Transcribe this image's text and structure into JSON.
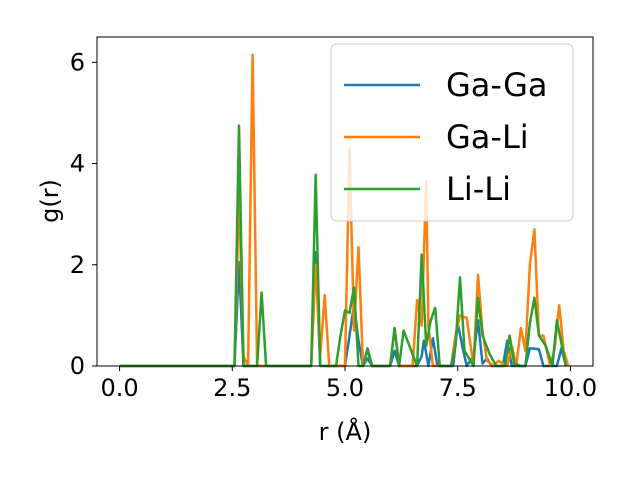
{
  "chart_data": {
    "type": "line",
    "title": "",
    "xlabel": "r (Å)",
    "ylabel": "g(r)",
    "xlim": [
      -0.5,
      10.5
    ],
    "ylim": [
      0,
      6.5
    ],
    "xticks": [
      0.0,
      2.5,
      5.0,
      7.5,
      10.0
    ],
    "xtick_labels": [
      "0.0",
      "2.5",
      "5.0",
      "7.5",
      "10.0"
    ],
    "yticks": [
      0,
      2,
      4,
      6
    ],
    "ytick_labels": [
      "0",
      "2",
      "4",
      "6"
    ],
    "grid": false,
    "legend_position": "top-right",
    "series": [
      {
        "name": "Ga-Ga",
        "color": "#1f77b4",
        "x": [
          0.0,
          2.5,
          2.55,
          2.65,
          2.75,
          2.85,
          4.2,
          4.25,
          4.35,
          4.45,
          4.55,
          5.0,
          5.1,
          5.2,
          5.3,
          5.4,
          5.5,
          5.6,
          6.0,
          6.1,
          6.2,
          6.6,
          6.7,
          6.75,
          6.85,
          6.95,
          7.05,
          7.4,
          7.5,
          7.6,
          7.7,
          7.85,
          7.95,
          8.05,
          8.15,
          8.25,
          8.5,
          8.6,
          8.7,
          8.85,
          9.0,
          9.1,
          9.3,
          9.4,
          9.7,
          9.8,
          9.9
        ],
        "y": [
          0,
          0,
          0,
          2.05,
          0,
          0,
          0,
          0,
          2.25,
          0,
          0,
          0,
          0.6,
          1.2,
          0.5,
          0.0,
          0.15,
          0,
          0,
          0.3,
          0,
          0,
          0.2,
          0.5,
          0,
          0.55,
          0,
          0,
          0.85,
          0.4,
          0,
          0.2,
          0.9,
          0.05,
          0.15,
          0,
          0,
          0.5,
          0,
          0,
          0,
          0.35,
          0.33,
          0,
          0,
          0.35,
          0
        ]
      },
      {
        "name": "Ga-Li",
        "color": "#ff7f0e",
        "x": [
          0.0,
          2.5,
          2.55,
          2.65,
          2.75,
          2.85,
          2.95,
          3.05,
          3.15,
          3.25,
          4.2,
          4.25,
          4.35,
          4.45,
          4.55,
          4.65,
          4.9,
          5.0,
          5.1,
          5.2,
          5.3,
          5.4,
          5.5,
          5.6,
          5.7,
          6.0,
          6.1,
          6.2,
          6.5,
          6.6,
          6.7,
          6.8,
          6.85,
          6.95,
          7.05,
          7.35,
          7.45,
          7.55,
          7.7,
          7.85,
          7.95,
          8.05,
          8.15,
          8.3,
          8.4,
          8.6,
          8.7,
          8.8,
          8.9,
          9.0,
          9.1,
          9.2,
          9.3,
          9.4,
          9.55,
          9.65,
          9.75,
          9.85,
          9.95
        ],
        "y": [
          0,
          0,
          0,
          3.4,
          0.2,
          0,
          6.15,
          0,
          0,
          0,
          0,
          0,
          2.0,
          0.2,
          1.4,
          0,
          0,
          0,
          4.3,
          0.7,
          2.35,
          0,
          0.3,
          0,
          0,
          0,
          0.75,
          0,
          0,
          1.3,
          0.8,
          3.65,
          0.8,
          0,
          0,
          0,
          0.6,
          1.0,
          0.95,
          0,
          1.8,
          0.7,
          0.1,
          0,
          0.1,
          0,
          0.4,
          0,
          0.75,
          0.3,
          2.0,
          2.7,
          0.6,
          0.6,
          0,
          0.35,
          1.2,
          0.3,
          0
        ]
      },
      {
        "name": "Li-Li",
        "color": "#2ca02c",
        "x": [
          0.0,
          2.5,
          2.55,
          2.65,
          2.75,
          2.85,
          2.95,
          3.05,
          3.15,
          3.25,
          4.2,
          4.25,
          4.35,
          4.45,
          4.55,
          4.8,
          4.9,
          5.0,
          5.1,
          5.2,
          5.3,
          5.4,
          5.5,
          5.6,
          6.0,
          6.1,
          6.2,
          6.3,
          6.6,
          6.7,
          6.8,
          6.9,
          7.0,
          7.1,
          7.35,
          7.45,
          7.55,
          7.65,
          7.85,
          7.95,
          8.05,
          8.2,
          8.35,
          8.45,
          8.55,
          8.65,
          8.75,
          8.9,
          9.0,
          9.1,
          9.2,
          9.3,
          9.45,
          9.6,
          9.7,
          9.8,
          9.9
        ],
        "y": [
          0,
          0,
          0,
          4.75,
          0,
          0,
          0,
          0,
          1.45,
          0,
          0,
          0,
          3.78,
          0,
          0,
          0,
          0.6,
          1.1,
          1.05,
          1.55,
          0,
          0,
          0.35,
          0,
          0,
          0.75,
          0,
          0.7,
          0,
          2.2,
          0.4,
          0.9,
          1.15,
          0,
          0,
          0.4,
          1.75,
          0.3,
          0,
          1.35,
          0.6,
          0.25,
          0,
          0,
          0,
          0.6,
          0.05,
          0,
          0,
          0.85,
          1.35,
          0.6,
          0.4,
          0,
          0.9,
          0.45,
          0
        ]
      }
    ]
  }
}
